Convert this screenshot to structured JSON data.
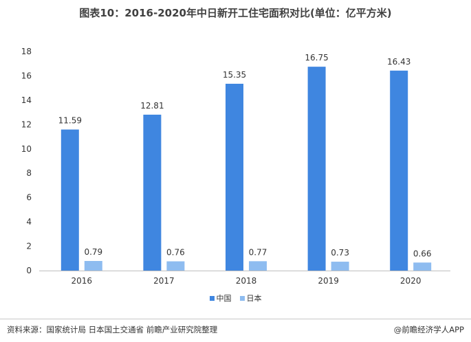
{
  "title": "图表10：2016-2020年中日新开工住宅面积对比(单位：亿平方米)",
  "source": "资料来源：国家统计局 日本国土交通省 前瞻产业研究院整理",
  "credit": "@前瞻经济学人APP",
  "colors": {
    "china": "#3f86e0",
    "japan": "#8ebcf0",
    "axis": "#bfbfbf"
  },
  "chart_data": {
    "type": "bar",
    "categories": [
      "2016",
      "2017",
      "2018",
      "2019",
      "2020"
    ],
    "series": [
      {
        "name": "中国",
        "values": [
          11.59,
          12.81,
          15.35,
          16.75,
          16.43
        ],
        "labels": [
          "11.59",
          "12.81",
          "15.35",
          "16.75",
          "16.43"
        ]
      },
      {
        "name": "日本",
        "values": [
          0.79,
          0.76,
          0.77,
          0.73,
          0.66
        ],
        "labels": [
          "0.79",
          "0.76",
          "0.77",
          "0.73",
          "0.66"
        ]
      }
    ],
    "ylim": [
      0,
      18
    ],
    "yticks": [
      "0",
      "2",
      "4",
      "6",
      "8",
      "10",
      "12",
      "14",
      "16",
      "18"
    ],
    "grid": false,
    "legend_position": "bottom"
  }
}
